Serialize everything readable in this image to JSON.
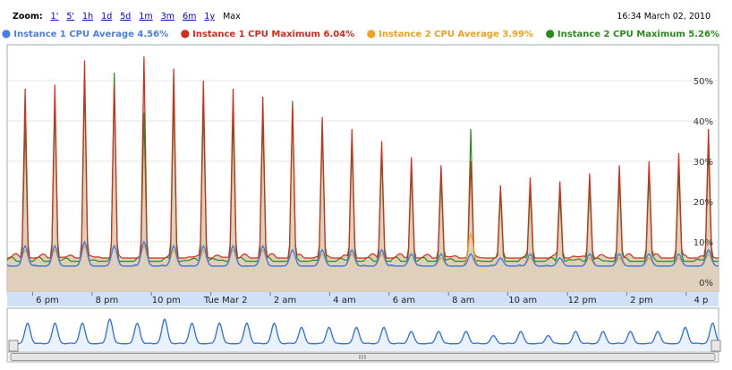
{
  "zoom": {
    "label": "Zoom:",
    "options": [
      "1'",
      "5'",
      "1h",
      "1d",
      "5d",
      "1m",
      "3m",
      "6m",
      "1y"
    ],
    "selected": "Max"
  },
  "timestamp": "16:34 March 02, 2010",
  "colors": {
    "avg1": "#4a7ee6",
    "max1": "#d42a1a",
    "avg2": "#f0a020",
    "max2": "#2a8a1a",
    "fill": "#d9c8b0",
    "axis_band": "#cfe0f7",
    "nav_line": "#2f6fd6",
    "nav_fill": "#eaf2fc"
  },
  "legend": [
    {
      "label": "Instance 1 CPU Average",
      "value": "4.56%",
      "color": "#4a7ee6"
    },
    {
      "label": "Instance 1 CPU Maximum",
      "value": "6.04%",
      "color": "#d42a1a"
    },
    {
      "label": "Instance 2 CPU Average",
      "value": "3.99%",
      "color": "#f0a020"
    },
    {
      "label": "Instance 2 CPU Maximum",
      "value": "5.26%",
      "color": "#2a8a1a"
    }
  ],
  "chart_data": {
    "type": "area",
    "x_ticks": [
      "6 pm",
      "8 pm",
      "10 pm",
      "Tue Mar 2",
      "2 am",
      "4 am",
      "6 am",
      "8 am",
      "10 am",
      "12 pm",
      "2 pm",
      "4 p"
    ],
    "y_ticks": [
      "0%",
      "10%",
      "20%",
      "30%",
      "40%",
      "50%"
    ],
    "ylim": [
      0,
      60
    ],
    "x_unit": "hours after 4 pm, Mar 1",
    "baseline": {
      "max": 6,
      "avg": 4
    },
    "peaks": [
      {
        "x": 0.25,
        "max1": 43,
        "max2": 33,
        "avg1": 9,
        "avg2": 8
      },
      {
        "x": 1.25,
        "max1": 48,
        "max2": 40,
        "avg1": 9,
        "avg2": 8
      },
      {
        "x": 2.25,
        "max1": 49,
        "max2": 45,
        "avg1": 9,
        "avg2": 8
      },
      {
        "x": 3.25,
        "max1": 55,
        "max2": 50,
        "avg1": 10,
        "avg2": 9
      },
      {
        "x": 4.25,
        "max1": 49,
        "max2": 52,
        "avg1": 9,
        "avg2": 9
      },
      {
        "x": 5.25,
        "max1": 56,
        "max2": 42,
        "avg1": 10,
        "avg2": 9
      },
      {
        "x": 6.25,
        "max1": 53,
        "max2": 47,
        "avg1": 9,
        "avg2": 8
      },
      {
        "x": 7.25,
        "max1": 50,
        "max2": 44,
        "avg1": 9,
        "avg2": 8
      },
      {
        "x": 8.25,
        "max1": 48,
        "max2": 42,
        "avg1": 9,
        "avg2": 8
      },
      {
        "x": 9.25,
        "max1": 46,
        "max2": 41,
        "avg1": 9,
        "avg2": 8
      },
      {
        "x": 10.25,
        "max1": 44,
        "max2": 45,
        "avg1": 8,
        "avg2": 8
      },
      {
        "x": 11.25,
        "max1": 41,
        "max2": 38,
        "avg1": 8,
        "avg2": 7
      },
      {
        "x": 12.25,
        "max1": 38,
        "max2": 35,
        "avg1": 8,
        "avg2": 7
      },
      {
        "x": 13.25,
        "max1": 35,
        "max2": 32,
        "avg1": 8,
        "avg2": 7
      },
      {
        "x": 14.25,
        "max1": 31,
        "max2": 28,
        "avg1": 7,
        "avg2": 7
      },
      {
        "x": 15.25,
        "max1": 29,
        "max2": 26,
        "avg1": 7,
        "avg2": 6
      },
      {
        "x": 16.25,
        "max1": 30,
        "max2": 38,
        "avg1": 7,
        "avg2": 12
      },
      {
        "x": 17.25,
        "max1": 24,
        "max2": 22,
        "avg1": 6,
        "avg2": 6
      },
      {
        "x": 18.25,
        "max1": 26,
        "max2": 23,
        "avg1": 7,
        "avg2": 6
      },
      {
        "x": 19.25,
        "max1": 25,
        "max2": 22,
        "avg1": 6,
        "avg2": 6
      },
      {
        "x": 20.25,
        "max1": 27,
        "max2": 24,
        "avg1": 7,
        "avg2": 6
      },
      {
        "x": 21.25,
        "max1": 29,
        "max2": 26,
        "avg1": 7,
        "avg2": 6
      },
      {
        "x": 22.25,
        "max1": 30,
        "max2": 27,
        "avg1": 7,
        "avg2": 6
      },
      {
        "x": 23.25,
        "max1": 32,
        "max2": 28,
        "avg1": 7,
        "avg2": 6
      },
      {
        "x": 24.25,
        "max1": 38,
        "max2": 34,
        "avg1": 8,
        "avg2": 7
      },
      {
        "x": 25.25,
        "max1": 43,
        "max2": 40,
        "avg1": 9,
        "avg2": 8
      }
    ]
  }
}
